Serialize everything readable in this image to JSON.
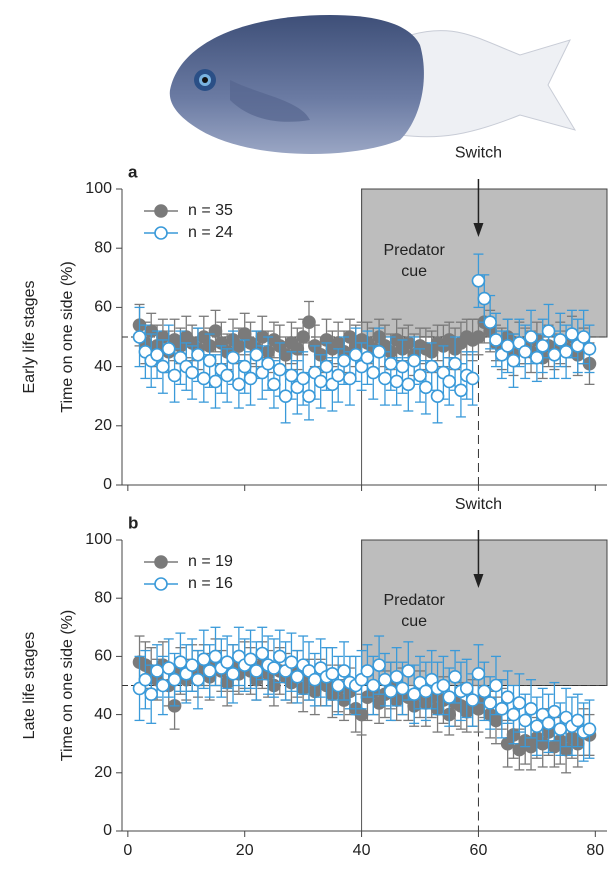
{
  "chart_data": [
    {
      "type": "scatter",
      "panel_label": "a",
      "stage_label": "Early life stages",
      "ylabel": "Time on one side (%)",
      "xlim": [
        -1,
        82
      ],
      "ylim": [
        0,
        100
      ],
      "yticks": [
        0,
        20,
        40,
        60,
        80,
        100
      ],
      "legend": "upper left",
      "shade": {
        "x": [
          40,
          82
        ],
        "y": [
          50,
          100
        ],
        "color": "#bdbdbd"
      },
      "hline": 50,
      "vline_solid": 40,
      "vline_dashed": 60,
      "annotations": [
        {
          "lines": [
            "Switch"
          ],
          "x": 60,
          "y": 112
        },
        {
          "lines": [
            "Predator",
            "cue"
          ],
          "x": 49,
          "y": 79
        }
      ],
      "x": [
        2,
        3,
        4,
        5,
        6,
        7,
        8,
        9,
        10,
        11,
        12,
        13,
        14,
        15,
        16,
        17,
        18,
        19,
        20,
        21,
        22,
        23,
        24,
        25,
        26,
        27,
        28,
        29,
        30,
        31,
        32,
        33,
        34,
        35,
        36,
        37,
        38,
        39,
        40,
        41,
        42,
        43,
        44,
        45,
        46,
        47,
        48,
        49,
        50,
        51,
        52,
        53,
        54,
        55,
        56,
        57,
        58,
        59,
        60,
        61,
        62,
        63,
        64,
        65,
        66,
        67,
        68,
        69,
        70,
        71,
        72,
        73,
        74,
        75,
        76,
        77,
        78,
        79
      ],
      "series": [
        {
          "name": "n = 35",
          "color": "#7a7a7a",
          "filled": true,
          "values": [
            54,
            48,
            52,
            47,
            50,
            45,
            49,
            47,
            50,
            48,
            46,
            50,
            47,
            52,
            48,
            45,
            49,
            47,
            51,
            48,
            46,
            50,
            45,
            49,
            47,
            44,
            48,
            46,
            50,
            55,
            47,
            44,
            49,
            46,
            48,
            45,
            50,
            47,
            49,
            48,
            46,
            50,
            47,
            45,
            49,
            46,
            48,
            44,
            47,
            46,
            45,
            48,
            47,
            49,
            46,
            48,
            50,
            49,
            50,
            55,
            52,
            48,
            46,
            50,
            44,
            48,
            47,
            45,
            49,
            43,
            47,
            45,
            48,
            46,
            50,
            44,
            47,
            41
          ],
          "errors": [
            7,
            7,
            6,
            7,
            6,
            7,
            7,
            6,
            7,
            6,
            7,
            7,
            6,
            7,
            7,
            6,
            7,
            6,
            7,
            7,
            6,
            7,
            7,
            6,
            7,
            6,
            7,
            7,
            6,
            7,
            7,
            6,
            7,
            6,
            7,
            7,
            6,
            7,
            6,
            7,
            7,
            6,
            7,
            6,
            7,
            7,
            6,
            7,
            6,
            7,
            7,
            6,
            7,
            6,
            7,
            7,
            6,
            7,
            6,
            7,
            7,
            6,
            7,
            6,
            7,
            7,
            6,
            7,
            6,
            7,
            7,
            6,
            7,
            6,
            7,
            7,
            6,
            7
          ]
        },
        {
          "name": "n = 24",
          "color": "#3a9ad9",
          "filled": false,
          "values": [
            50,
            45,
            42,
            44,
            40,
            46,
            37,
            43,
            40,
            38,
            44,
            36,
            42,
            35,
            39,
            37,
            43,
            34,
            40,
            36,
            44,
            38,
            41,
            34,
            39,
            30,
            37,
            33,
            36,
            30,
            38,
            35,
            40,
            34,
            37,
            42,
            36,
            44,
            40,
            43,
            38,
            45,
            36,
            41,
            35,
            40,
            34,
            42,
            37,
            33,
            40,
            30,
            38,
            35,
            41,
            32,
            37,
            36,
            69,
            63,
            55,
            49,
            44,
            47,
            42,
            48,
            45,
            50,
            43,
            47,
            52,
            44,
            49,
            45,
            51,
            47,
            50,
            46
          ],
          "errors": [
            10,
            9,
            9,
            8,
            9,
            8,
            9,
            9,
            8,
            9,
            9,
            8,
            9,
            9,
            8,
            9,
            9,
            8,
            9,
            9,
            8,
            9,
            9,
            8,
            9,
            9,
            8,
            9,
            9,
            8,
            9,
            9,
            8,
            9,
            9,
            8,
            9,
            9,
            8,
            9,
            9,
            8,
            9,
            9,
            8,
            9,
            9,
            8,
            9,
            9,
            8,
            9,
            9,
            8,
            9,
            9,
            8,
            9,
            9,
            8,
            9,
            9,
            8,
            9,
            9,
            8,
            9,
            9,
            8,
            9,
            9,
            8,
            9,
            9,
            8,
            9,
            9,
            8
          ]
        }
      ]
    },
    {
      "type": "scatter",
      "panel_label": "b",
      "stage_label": "Late life stages",
      "ylabel": "Time on one side (%)",
      "xlim": [
        -1,
        82
      ],
      "ylim": [
        0,
        100
      ],
      "yticks": [
        0,
        20,
        40,
        60,
        80,
        100
      ],
      "xticks": [
        0,
        20,
        40,
        60,
        80
      ],
      "legend": "upper left",
      "shade": {
        "x": [
          40,
          82
        ],
        "y": [
          50,
          100
        ],
        "color": "#bdbdbd"
      },
      "hline": 50,
      "vline_solid": 40,
      "vline_dashed": 60,
      "annotations": [
        {
          "lines": [
            "Switch"
          ],
          "x": 60,
          "y": 112
        },
        {
          "lines": [
            "Predator",
            "cue"
          ],
          "x": 49,
          "y": 79
        }
      ],
      "x": [
        2,
        3,
        4,
        5,
        6,
        7,
        8,
        9,
        10,
        11,
        12,
        13,
        14,
        15,
        16,
        17,
        18,
        19,
        20,
        21,
        22,
        23,
        24,
        25,
        26,
        27,
        28,
        29,
        30,
        31,
        32,
        33,
        34,
        35,
        36,
        37,
        38,
        39,
        40,
        41,
        42,
        43,
        44,
        45,
        46,
        47,
        48,
        49,
        50,
        51,
        52,
        53,
        54,
        55,
        56,
        57,
        58,
        59,
        60,
        61,
        62,
        63,
        64,
        65,
        66,
        67,
        68,
        69,
        70,
        71,
        72,
        73,
        74,
        75,
        76,
        77,
        78,
        79
      ],
      "series": [
        {
          "name": "n = 19",
          "color": "#7a7a7a",
          "filled": true,
          "values": [
            58,
            57,
            55,
            52,
            57,
            50,
            43,
            55,
            52,
            56,
            54,
            57,
            53,
            58,
            55,
            51,
            56,
            54,
            57,
            55,
            52,
            57,
            54,
            50,
            55,
            53,
            51,
            54,
            49,
            52,
            48,
            51,
            50,
            47,
            49,
            45,
            48,
            42,
            40,
            46,
            48,
            44,
            47,
            50,
            45,
            48,
            46,
            43,
            47,
            44,
            46,
            42,
            45,
            40,
            44,
            43,
            41,
            44,
            42,
            46,
            40,
            38,
            42,
            30,
            33,
            28,
            31,
            29,
            32,
            30,
            34,
            29,
            31,
            28,
            32,
            30,
            34,
            33
          ],
          "errors": [
            9,
            8,
            8,
            7,
            8,
            7,
            8,
            8,
            7,
            8,
            8,
            7,
            8,
            8,
            7,
            8,
            8,
            7,
            8,
            8,
            7,
            8,
            8,
            7,
            8,
            8,
            7,
            8,
            8,
            7,
            8,
            8,
            7,
            8,
            8,
            7,
            8,
            8,
            7,
            8,
            8,
            7,
            8,
            8,
            7,
            8,
            8,
            7,
            8,
            8,
            7,
            8,
            8,
            7,
            8,
            8,
            7,
            8,
            8,
            7,
            8,
            8,
            7,
            8,
            8,
            7,
            8,
            8,
            7,
            8,
            8,
            7,
            8,
            8,
            7,
            8,
            8,
            7
          ]
        },
        {
          "name": "n = 16",
          "color": "#3a9ad9",
          "filled": false,
          "values": [
            49,
            52,
            47,
            55,
            50,
            56,
            52,
            58,
            54,
            57,
            52,
            59,
            55,
            60,
            56,
            58,
            54,
            60,
            57,
            59,
            55,
            61,
            57,
            56,
            60,
            55,
            58,
            53,
            57,
            55,
            52,
            56,
            53,
            54,
            50,
            55,
            51,
            50,
            52,
            55,
            50,
            57,
            52,
            48,
            53,
            49,
            55,
            47,
            51,
            48,
            52,
            49,
            50,
            46,
            53,
            48,
            49,
            45,
            54,
            48,
            44,
            50,
            42,
            46,
            40,
            44,
            38,
            42,
            36,
            40,
            37,
            41,
            35,
            39,
            36,
            38,
            34,
            35
          ],
          "errors": [
            11,
            10,
            10,
            9,
            10,
            10,
            9,
            10,
            10,
            9,
            10,
            10,
            9,
            10,
            10,
            9,
            10,
            10,
            9,
            10,
            10,
            9,
            10,
            10,
            9,
            10,
            10,
            9,
            10,
            10,
            9,
            10,
            10,
            9,
            10,
            10,
            9,
            10,
            10,
            9,
            10,
            10,
            9,
            10,
            10,
            9,
            10,
            10,
            9,
            10,
            10,
            9,
            10,
            10,
            9,
            10,
            10,
            9,
            10,
            10,
            9,
            10,
            10,
            9,
            10,
            10,
            9,
            10,
            10,
            9,
            10,
            10,
            9,
            10,
            10,
            9,
            10,
            10
          ]
        }
      ]
    }
  ]
}
